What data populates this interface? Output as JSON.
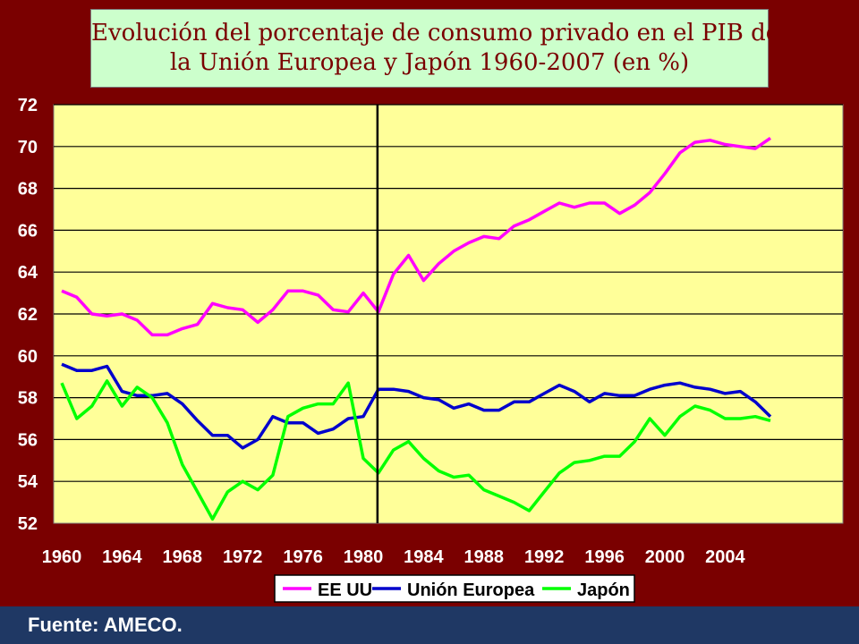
{
  "slide": {
    "source": "Fuente: AMECO."
  },
  "colors": {
    "background": "#7a0000",
    "footer": "#1f3864",
    "title_box": "#ccffcc",
    "plot_area": "#ffff99",
    "eeuu": "#ff00ff",
    "ue": "#0000cc",
    "japon": "#00ff00"
  },
  "chart_data": {
    "type": "line",
    "title_lines": [
      "Evolución del porcentaje de consumo privado en el PIB de EE.UU,",
      "la Unión Europea y Japón 1960-2007 (en %)"
    ],
    "x": [
      1960,
      1961,
      1962,
      1963,
      1964,
      1965,
      1966,
      1967,
      1968,
      1969,
      1970,
      1971,
      1972,
      1973,
      1974,
      1975,
      1976,
      1977,
      1978,
      1979,
      1980,
      1981,
      1982,
      1983,
      1984,
      1985,
      1986,
      1987,
      1988,
      1989,
      1990,
      1991,
      1992,
      1993,
      1994,
      1995,
      1996,
      1997,
      1998,
      1999,
      2000,
      2001,
      2002,
      2003,
      2004,
      2005,
      2006,
      2007
    ],
    "x_ticks": [
      "1960",
      "1964",
      "1968",
      "1972",
      "1976",
      "1980",
      "1984",
      "1988",
      "1992",
      "1996",
      "2000",
      "2004"
    ],
    "y_ticks": [
      "72",
      "70",
      "68",
      "66",
      "64",
      "62",
      "60",
      "58",
      "56",
      "54",
      "52"
    ],
    "ylim": [
      52,
      72
    ],
    "xlim": [
      1960,
      2007
    ],
    "vertical_marker": 1981,
    "grid": true,
    "legend_position": "bottom",
    "series": [
      {
        "name": "EE UU",
        "color": "#ff00ff",
        "values": [
          63.1,
          62.8,
          62.0,
          61.9,
          62.0,
          61.7,
          61.0,
          61.0,
          61.3,
          61.5,
          62.5,
          62.3,
          62.2,
          61.6,
          62.2,
          63.1,
          63.1,
          62.9,
          62.2,
          62.1,
          63.0,
          62.1,
          63.9,
          64.8,
          63.6,
          64.4,
          65.0,
          65.4,
          65.7,
          65.6,
          66.2,
          66.5,
          66.9,
          67.3,
          67.1,
          67.3,
          67.3,
          66.8,
          67.2,
          67.8,
          68.7,
          69.7,
          70.2,
          70.3,
          70.1,
          70.0,
          69.9,
          70.4
        ]
      },
      {
        "name": "Unión Europea",
        "color": "#0000cc",
        "values": [
          59.6,
          59.3,
          59.3,
          59.5,
          58.3,
          58.1,
          58.1,
          58.2,
          57.7,
          56.9,
          56.2,
          56.2,
          55.6,
          56.0,
          57.1,
          56.8,
          56.8,
          56.3,
          56.5,
          57.0,
          57.1,
          58.4,
          58.4,
          58.3,
          58.0,
          57.9,
          57.5,
          57.7,
          57.4,
          57.4,
          57.8,
          57.8,
          58.2,
          58.6,
          58.3,
          57.8,
          58.2,
          58.1,
          58.1,
          58.4,
          58.6,
          58.7,
          58.5,
          58.4,
          58.2,
          58.3,
          57.8,
          57.1
        ]
      },
      {
        "name": "Japón",
        "color": "#00ff00",
        "values": [
          58.7,
          57.0,
          57.6,
          58.8,
          57.6,
          58.5,
          58.0,
          56.8,
          54.8,
          53.5,
          52.2,
          53.5,
          54.0,
          53.6,
          54.3,
          57.1,
          57.5,
          57.7,
          57.7,
          58.7,
          55.1,
          54.4,
          55.5,
          55.9,
          55.1,
          54.5,
          54.2,
          54.3,
          53.6,
          53.3,
          53.0,
          52.6,
          53.5,
          54.4,
          54.9,
          55.0,
          55.2,
          55.2,
          55.9,
          57.0,
          56.2,
          57.1,
          57.6,
          57.4,
          57.0,
          57.0,
          57.1,
          56.9
        ]
      }
    ]
  }
}
